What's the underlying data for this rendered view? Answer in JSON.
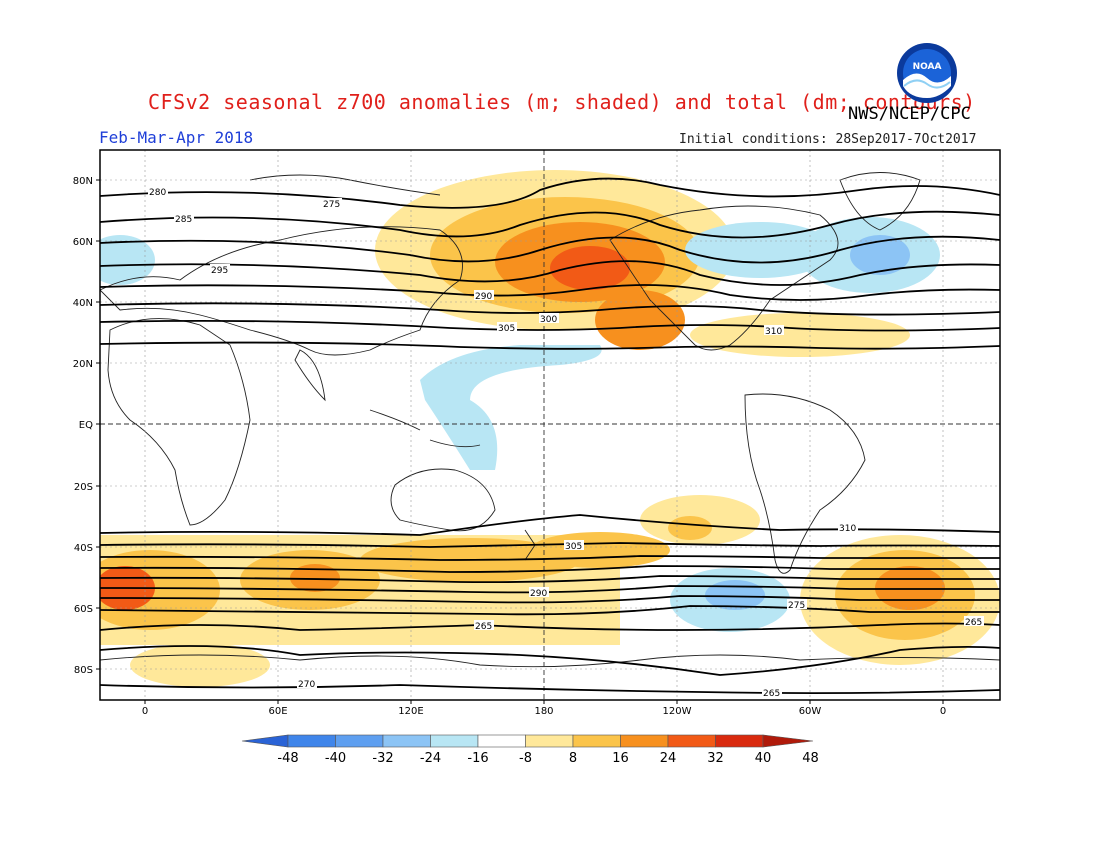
{
  "title": "CFSv2 seasonal z700 anomalies (m; shaded) and total (dm; contours)",
  "agency": "NWS/NCEP/CPC",
  "period": "Feb-Mar-Apr 2018",
  "initial_conditions": "Initial conditions: 28Sep2017-7Oct2017",
  "logo": {
    "icon": "noaa-logo",
    "text": "NOAA"
  },
  "map": {
    "lat_labels": [
      "80N",
      "60N",
      "40N",
      "20N",
      "EQ",
      "20S",
      "40S",
      "60S",
      "80S"
    ],
    "lon_labels": [
      "0",
      "60E",
      "120E",
      "180",
      "120W",
      "60W",
      "0"
    ],
    "contour_labels": [
      "280",
      "275",
      "285",
      "290",
      "295",
      "300",
      "305",
      "310",
      "265",
      "270"
    ]
  },
  "colorbar": {
    "labels": [
      "-48",
      "-40",
      "-32",
      "-24",
      "-16",
      "-8",
      "8",
      "16",
      "24",
      "32",
      "40",
      "48"
    ],
    "colors": [
      "#2a63d6",
      "#3f85ea",
      "#5e9ff0",
      "#8cc4f5",
      "#b8e6f4",
      "#ffffff",
      "#ffe89a",
      "#fbc44a",
      "#f7901e",
      "#f25a16",
      "#d92a0e",
      "#b01a0a"
    ]
  }
}
